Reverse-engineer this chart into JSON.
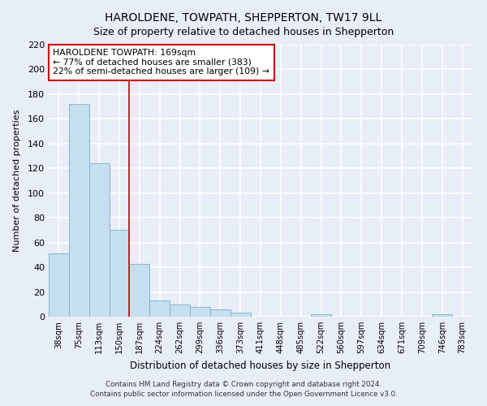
{
  "title": "HAROLDENE, TOWPATH, SHEPPERTON, TW17 9LL",
  "subtitle": "Size of property relative to detached houses in Shepperton",
  "xlabel": "Distribution of detached houses by size in Shepperton",
  "ylabel": "Number of detached properties",
  "footer_line1": "Contains HM Land Registry data © Crown copyright and database right 2024.",
  "footer_line2": "Contains public sector information licensed under the Open Government Licence v3.0.",
  "bar_labels": [
    "38sqm",
    "75sqm",
    "113sqm",
    "150sqm",
    "187sqm",
    "224sqm",
    "262sqm",
    "299sqm",
    "336sqm",
    "373sqm",
    "411sqm",
    "448sqm",
    "485sqm",
    "522sqm",
    "560sqm",
    "597sqm",
    "634sqm",
    "671sqm",
    "709sqm",
    "746sqm",
    "783sqm"
  ],
  "bar_values": [
    51,
    172,
    124,
    70,
    43,
    13,
    10,
    8,
    6,
    3,
    0,
    0,
    0,
    2,
    0,
    0,
    0,
    0,
    0,
    2,
    0
  ],
  "bar_color": "#c5dff0",
  "bar_edge_color": "#8ab4cc",
  "highlight_bar_index": 3,
  "highlight_line_color": "#cc0000",
  "annotation_title": "HAROLDENE TOWPATH: 169sqm",
  "annotation_line1": "← 77% of detached houses are smaller (383)",
  "annotation_line2": "22% of semi-detached houses are larger (109) →",
  "annotation_box_color": "#ffffff",
  "annotation_box_edge": "#cc0000",
  "ylim": [
    0,
    220
  ],
  "yticks": [
    0,
    20,
    40,
    60,
    80,
    100,
    120,
    140,
    160,
    180,
    200,
    220
  ],
  "background_color": "#e8eef8",
  "plot_bg_color": "#e8eef8",
  "grid_color": "#ffffff",
  "title_fontsize": 10,
  "subtitle_fontsize": 9
}
